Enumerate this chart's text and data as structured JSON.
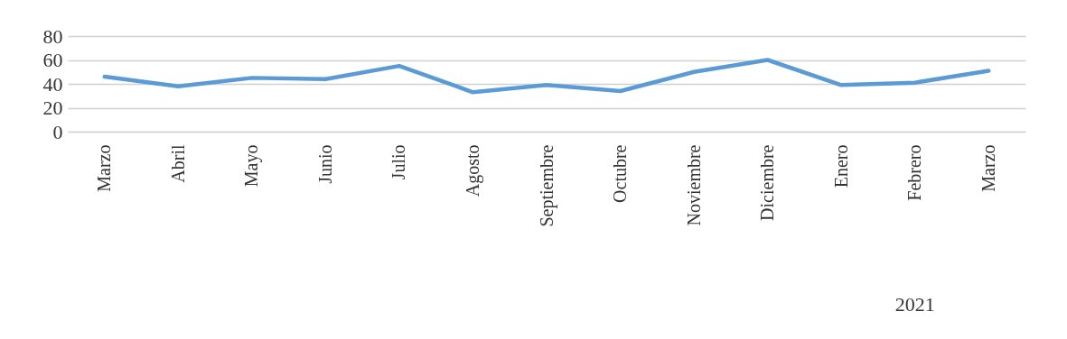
{
  "chart_data": {
    "type": "line",
    "categories": [
      "Marzo",
      "Abril",
      "Mayo",
      "Junio",
      "Julio",
      "Agosto",
      "Septiembre",
      "Octubre",
      "Noviembre",
      "Diciembre",
      "Enero",
      "Febrero",
      "Marzo"
    ],
    "series": [
      {
        "color": "#5b9bd5",
        "values": [
          46,
          38,
          45,
          44,
          55,
          33,
          39,
          34,
          50,
          60,
          39,
          41,
          51
        ]
      }
    ],
    "ylim": [
      0,
      80
    ],
    "yticks": [
      0,
      20,
      40,
      60,
      80
    ],
    "grid": "y",
    "marker": "none",
    "line_style": "solid",
    "annotations": [
      "2021"
    ]
  }
}
